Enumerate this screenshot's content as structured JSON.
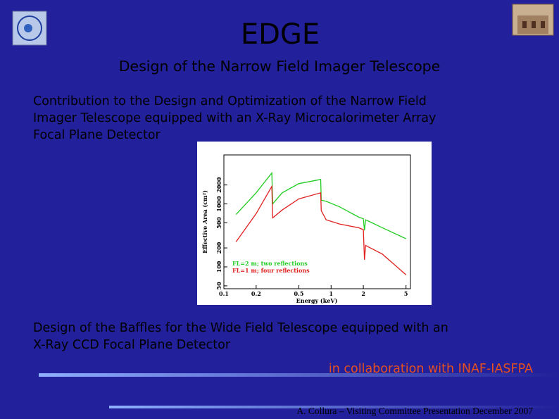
{
  "header": {
    "title": "EDGE",
    "subtitle": "Design of the Narrow Field Imager Telescope"
  },
  "body": {
    "paragraph1": [
      "Contribution to the Design and Optimization of the Narrow Field",
      "Imager Telescope equipped with an X-Ray Microcalorimeter Array",
      "Focal Plane Detector"
    ],
    "paragraph2": [
      "Design of the Baffles for the Wide Field Telescope equipped with an",
      "X-Ray  CCD Focal Plane Detector"
    ],
    "collaboration": "in collaboration with INAF-IASFPA"
  },
  "footer": "A. Collura  – Visiting Committee Presentation December 2007",
  "chart": {
    "type": "line",
    "xlabel": "Energy (keV)",
    "ylabel": "Effective Area (cm²)",
    "log_x": true,
    "log_y": true,
    "xlim": [
      0.1,
      5.5
    ],
    "ylim": [
      45,
      6000
    ],
    "xticks": [
      0.1,
      0.2,
      0.5,
      1,
      2,
      5
    ],
    "yticks": [
      50,
      100,
      200,
      500,
      1000,
      2000
    ],
    "x": [
      0.13,
      0.2,
      0.28,
      0.285,
      0.35,
      0.5,
      0.8,
      0.81,
      0.9,
      1.2,
      1.8,
      2.0,
      2.05,
      2.1,
      2.2,
      3,
      5
    ],
    "series": [
      {
        "name": "FL=2 m; two reflections",
        "color": "#22cc22",
        "values": [
          680,
          1500,
          3100,
          1000,
          1500,
          2100,
          2450,
          1150,
          1100,
          900,
          620,
          580,
          380,
          560,
          540,
          420,
          280
        ]
      },
      {
        "name": "FL=1 m; four reflections",
        "color": "#e02020",
        "values": [
          250,
          700,
          1900,
          600,
          800,
          1200,
          1500,
          780,
          560,
          480,
          420,
          390,
          130,
          220,
          210,
          160,
          75
        ]
      }
    ]
  }
}
